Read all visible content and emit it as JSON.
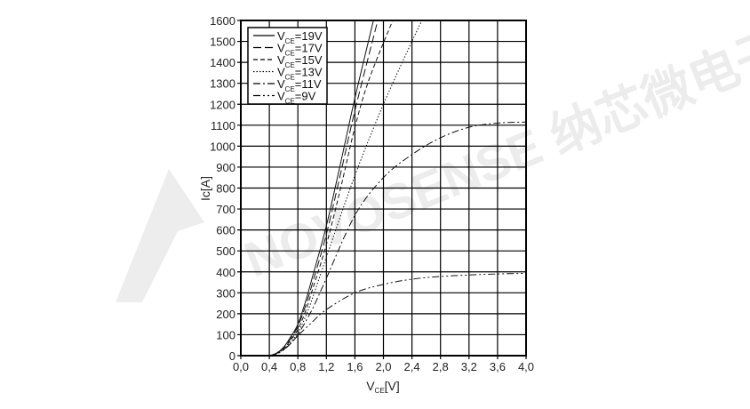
{
  "watermark": "NOVOSENSE 纳芯微电子",
  "chart_data": {
    "type": "line",
    "title": "",
    "xlabel": {
      "main": "V",
      "sub": "CE",
      "unit": "[V]"
    },
    "ylabel": "Ic[A]",
    "xlim": [
      0,
      4.0
    ],
    "ylim": [
      0,
      1600
    ],
    "xticks": [
      0,
      0.4,
      0.8,
      1.2,
      1.6,
      2.0,
      2.4,
      2.8,
      3.2,
      3.6,
      4.0
    ],
    "xtick_labels": [
      "0,0",
      "0,4",
      "0,8",
      "1,2",
      "1,6",
      "2,0",
      "2,4",
      "2,8",
      "3,2",
      "3,6",
      "4,0"
    ],
    "yticks": [
      0,
      100,
      200,
      300,
      400,
      500,
      600,
      700,
      800,
      900,
      1000,
      1100,
      1200,
      1300,
      1400,
      1500,
      1600
    ],
    "ytick_labels": [
      "0",
      "100",
      "200",
      "300",
      "400",
      "500",
      "600",
      "700",
      "800",
      "900",
      "1000",
      "1100",
      "1200",
      "1300",
      "1400",
      "1500",
      "1600"
    ],
    "grid": true,
    "legend_position": "top-left",
    "series": [
      {
        "name": "VCE=19V",
        "label_main": "V",
        "label_sub": "CE",
        "label_val": "=19V",
        "style": "solid",
        "x": [
          0.4,
          0.5,
          0.6,
          0.7,
          0.8,
          0.9,
          1.0,
          1.2,
          1.4,
          1.6,
          1.86
        ],
        "y": [
          0,
          12,
          40,
          90,
          150,
          250,
          370,
          620,
          920,
          1230,
          1600
        ]
      },
      {
        "name": "VCE=17V",
        "label_main": "V",
        "label_sub": "CE",
        "label_val": "=17V",
        "style": "longdash",
        "x": [
          0.4,
          0.5,
          0.6,
          0.7,
          0.8,
          0.9,
          1.0,
          1.2,
          1.4,
          1.6,
          1.92
        ],
        "y": [
          0,
          11,
          37,
          82,
          140,
          230,
          340,
          580,
          870,
          1170,
          1600
        ]
      },
      {
        "name": "VCE=15V",
        "label_main": "V",
        "label_sub": "CE",
        "label_val": "=15V",
        "style": "dash",
        "x": [
          0.4,
          0.5,
          0.6,
          0.7,
          0.8,
          0.9,
          1.0,
          1.2,
          1.4,
          1.6,
          1.8,
          2.13
        ],
        "y": [
          0,
          10,
          34,
          75,
          125,
          205,
          310,
          530,
          800,
          1090,
          1320,
          1600
        ]
      },
      {
        "name": "VCE=13V",
        "label_main": "V",
        "label_sub": "CE",
        "label_val": "=13V",
        "style": "dot",
        "x": [
          0.4,
          0.5,
          0.6,
          0.7,
          0.8,
          0.9,
          1.0,
          1.2,
          1.6,
          2.0,
          2.4,
          2.54
        ],
        "y": [
          0,
          9,
          30,
          66,
          110,
          180,
          270,
          470,
          860,
          1200,
          1500,
          1600
        ]
      },
      {
        "name": "VCE=11V",
        "label_main": "V",
        "label_sub": "CE",
        "label_val": "=11V",
        "style": "dashdot",
        "x": [
          0.4,
          0.5,
          0.6,
          0.7,
          0.8,
          1.0,
          1.2,
          1.6,
          2.0,
          2.4,
          2.8,
          3.2,
          3.6,
          4.0
        ],
        "y": [
          0,
          8,
          28,
          60,
          100,
          220,
          370,
          670,
          850,
          960,
          1040,
          1090,
          1110,
          1115
        ]
      },
      {
        "name": "VCE=9V",
        "label_main": "V",
        "label_sub": "CE",
        "label_val": "=9V",
        "style": "dashdotdot",
        "x": [
          0.4,
          0.5,
          0.6,
          0.7,
          0.8,
          1.0,
          1.2,
          1.6,
          2.0,
          2.4,
          2.8,
          3.2,
          3.6,
          4.0
        ],
        "y": [
          0,
          8,
          27,
          58,
          95,
          160,
          220,
          300,
          340,
          365,
          378,
          385,
          390,
          393
        ]
      }
    ]
  }
}
